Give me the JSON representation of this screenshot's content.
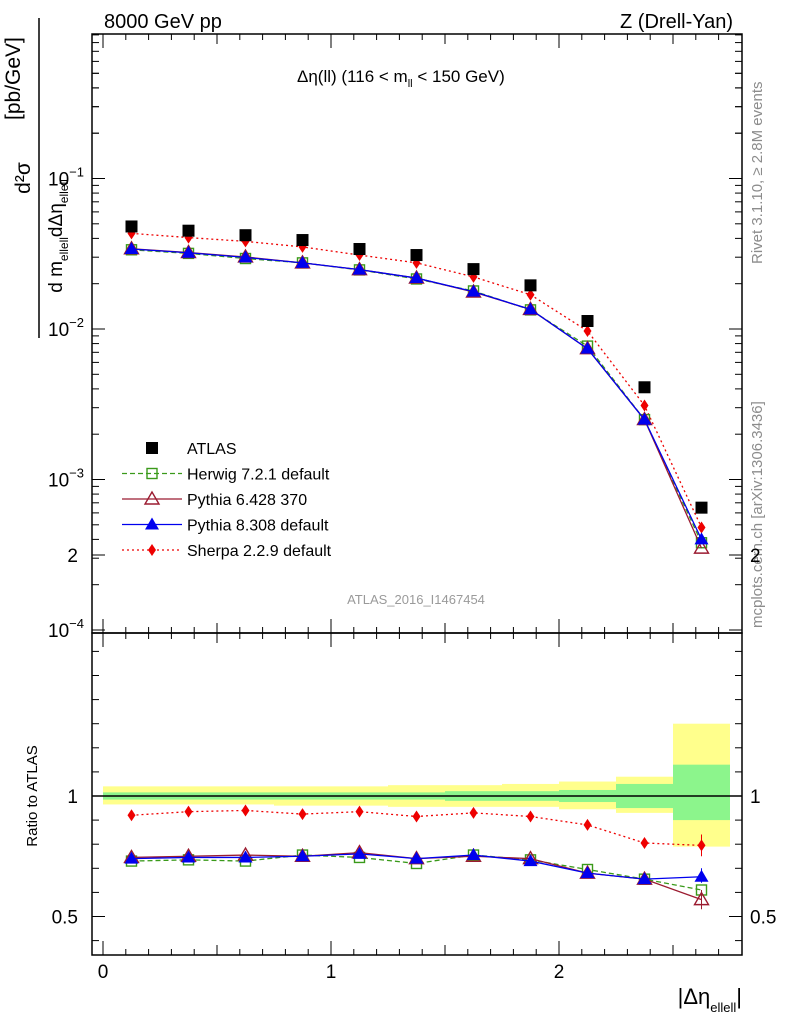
{
  "header": {
    "left": "8000 GeV pp",
    "right": "Z (Drell-Yan)"
  },
  "side_labels": {
    "rivet": "Rivet 3.1.10, ≥ 2.8M events",
    "mcplots": "mcplots.cern.ch [arXiv:1306.3436]"
  },
  "upper": {
    "title_main": "Δη(ll) (116 < m",
    "title_sub": "ll",
    "title_end": " < 150 GeV)",
    "ylabel": "d²σ / d m_ellell dΔη_ellell [pb/GeV]",
    "ylabel_num": "d²σ",
    "ylabel_den_a": "d m",
    "ylabel_den_sub1": "ellell",
    "ylabel_den_b": "dΔη",
    "ylabel_den_sub2": "ellell",
    "ylabel_unit": "[pb/GeV]",
    "watermark": "ATLAS_2016_I1467454",
    "yticks": [
      {
        "base": "10",
        "exp": "−1",
        "value": 0.1
      },
      {
        "base": "10",
        "exp": "−2",
        "value": 0.01
      },
      {
        "base": "10",
        "exp": "−3",
        "value": 0.001
      },
      {
        "base": "10",
        "exp": "−4",
        "value": 0.0001
      }
    ]
  },
  "lower": {
    "ylabel": "Ratio to ATLAS",
    "yticks": [
      "0.5",
      "1",
      "2"
    ],
    "xticks": [
      "0",
      "1",
      "2"
    ],
    "xlabel_main": "|Δη",
    "xlabel_sub": "ellell",
    "xlabel_end": "|"
  },
  "legend": [
    {
      "label": "ATLAS",
      "color": "#000000",
      "marker": "filled-square",
      "line": "none"
    },
    {
      "label": "Herwig 7.2.1 default",
      "color": "#3a9a1a",
      "marker": "open-square",
      "line": "dashed"
    },
    {
      "label": "Pythia 6.428 370",
      "color": "#9b1b30",
      "marker": "open-triangle",
      "line": "solid"
    },
    {
      "label": "Pythia 8.308 default",
      "color": "#0000ee",
      "marker": "filled-triangle",
      "line": "solid"
    },
    {
      "label": "Sherpa 2.2.9 default",
      "color": "#ee0000",
      "marker": "filled-diamond",
      "line": "dotted"
    }
  ],
  "chart_data": [
    {
      "type": "line",
      "title": "Δη(ll) (116 < m_ll < 150 GeV)",
      "xlabel": "|Δη_ellell|",
      "ylabel": "d²σ / d m_ellell dΔη_ellell [pb/GeV]",
      "yscale": "log",
      "xlim": [
        -0.1,
        2.8
      ],
      "ylim": [
        0.0001,
        0.6
      ],
      "x": [
        0.125,
        0.375,
        0.625,
        0.875,
        1.125,
        1.375,
        1.625,
        1.875,
        2.125,
        2.375,
        2.625
      ],
      "series": [
        {
          "name": "ATLAS",
          "values": [
            0.048,
            0.045,
            0.042,
            0.039,
            0.034,
            0.031,
            0.025,
            0.0195,
            0.0113,
            0.0041,
            0.00065
          ]
        },
        {
          "name": "Herwig 7.2.1 default",
          "values": [
            0.0336,
            0.0318,
            0.0294,
            0.0275,
            0.0247,
            0.0215,
            0.0179,
            0.0134,
            0.0077,
            0.0025,
            0.00038
          ]
        },
        {
          "name": "Pythia 6.428 370",
          "values": [
            0.0341,
            0.0322,
            0.0301,
            0.0275,
            0.0248,
            0.0218,
            0.0176,
            0.0135,
            0.0074,
            0.0025,
            0.00035
          ]
        },
        {
          "name": "Pythia 8.308 default",
          "values": [
            0.034,
            0.0321,
            0.0299,
            0.0275,
            0.0248,
            0.0218,
            0.0177,
            0.0135,
            0.0074,
            0.0025,
            0.0004
          ]
        },
        {
          "name": "Sherpa 2.2.9 default",
          "values": [
            0.0432,
            0.0405,
            0.0382,
            0.0351,
            0.031,
            0.0275,
            0.0222,
            0.0169,
            0.0097,
            0.0031,
            0.00048
          ]
        }
      ]
    },
    {
      "type": "line",
      "ylabel": "Ratio to ATLAS",
      "xlabel": "|Δη_ellell|",
      "xlim": [
        -0.1,
        2.8
      ],
      "ylim": [
        0.35,
        2.35
      ],
      "x": [
        0.125,
        0.375,
        0.625,
        0.875,
        1.125,
        1.375,
        1.625,
        1.875,
        2.125,
        2.375,
        2.625
      ],
      "series": [
        {
          "name": "Herwig 7.2.1 default",
          "values": [
            0.73,
            0.735,
            0.73,
            0.755,
            0.745,
            0.72,
            0.755,
            0.735,
            0.695,
            0.655,
            0.61
          ]
        },
        {
          "name": "Pythia 6.428 370",
          "values": [
            0.745,
            0.75,
            0.755,
            0.75,
            0.765,
            0.74,
            0.75,
            0.74,
            0.68,
            0.655,
            0.57
          ]
        },
        {
          "name": "Pythia 8.308 default",
          "values": [
            0.74,
            0.745,
            0.745,
            0.75,
            0.76,
            0.74,
            0.755,
            0.73,
            0.68,
            0.655,
            0.665
          ]
        },
        {
          "name": "Sherpa 2.2.9 default",
          "values": [
            0.92,
            0.935,
            0.94,
            0.925,
            0.935,
            0.915,
            0.93,
            0.915,
            0.88,
            0.805,
            0.795
          ]
        }
      ],
      "uncertainty_bands": {
        "bin_edges": [
          0,
          0.25,
          0.5,
          0.75,
          1.0,
          1.25,
          1.5,
          1.75,
          2.0,
          2.25,
          2.5,
          2.75
        ],
        "stat_lo": [
          0.985,
          0.985,
          0.985,
          0.985,
          0.985,
          0.985,
          0.98,
          0.98,
          0.975,
          0.95,
          0.9
        ],
        "stat_hi": [
          1.015,
          1.015,
          1.015,
          1.015,
          1.015,
          1.015,
          1.02,
          1.02,
          1.025,
          1.05,
          1.13
        ],
        "total_lo": [
          0.965,
          0.965,
          0.965,
          0.96,
          0.96,
          0.955,
          0.955,
          0.955,
          0.945,
          0.93,
          0.79
        ],
        "total_hi": [
          1.04,
          1.04,
          1.04,
          1.04,
          1.04,
          1.045,
          1.045,
          1.05,
          1.06,
          1.08,
          1.3
        ]
      }
    }
  ]
}
